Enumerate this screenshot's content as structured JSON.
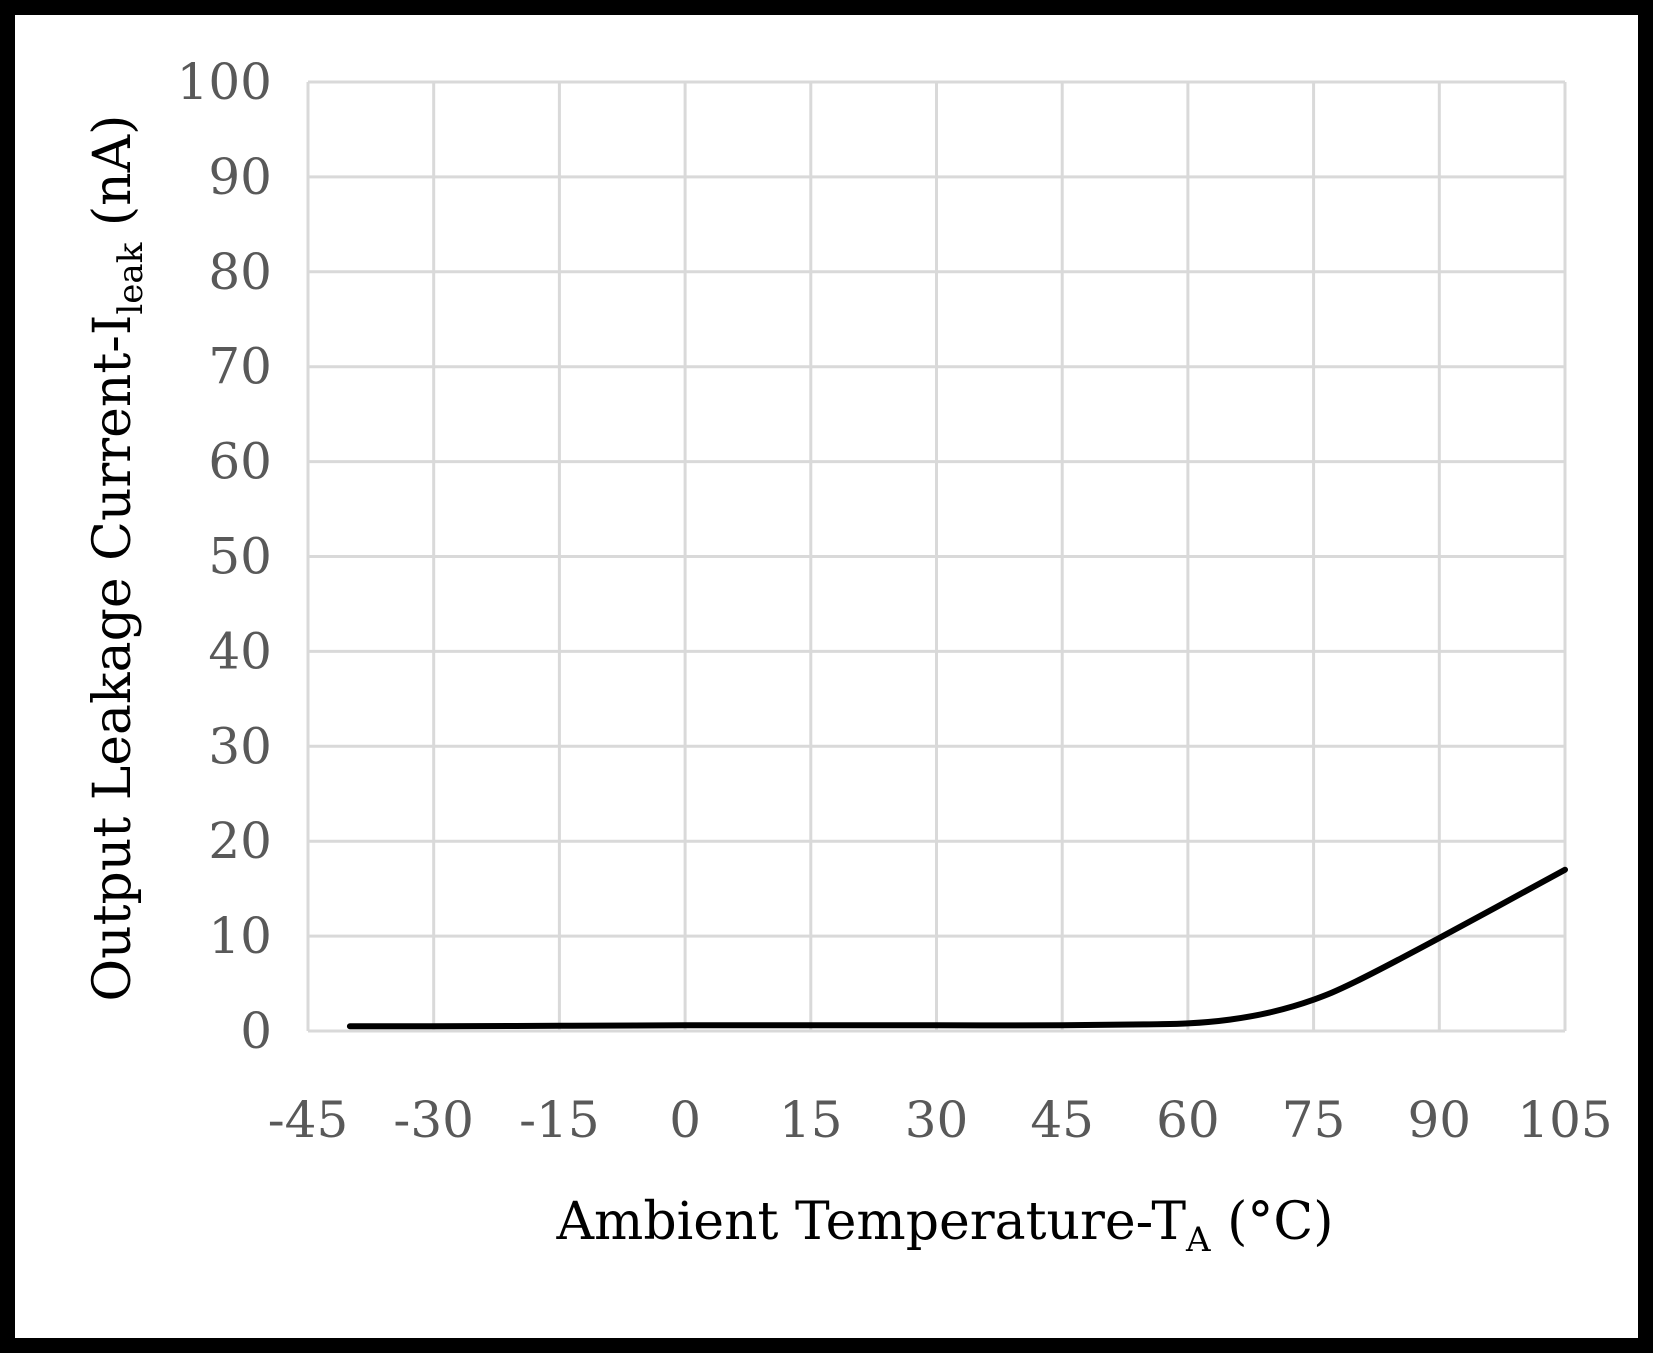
{
  "chart_data": {
    "type": "line",
    "title": "",
    "xlabel": {
      "main": "Ambient Temperature-T",
      "subscript": "A",
      "suffix": " (°C)"
    },
    "ylabel": {
      "main": "Output Leakage Current-I",
      "subscript": "leak",
      "suffix": " (nA)"
    },
    "xlim": [
      -45,
      105
    ],
    "ylim": [
      0,
      100
    ],
    "x_ticks": [
      -45,
      -30,
      -15,
      0,
      15,
      30,
      45,
      60,
      75,
      90,
      105
    ],
    "x_tick_labels": [
      "-45",
      "-30",
      "-15",
      "0",
      "15",
      "30",
      "45",
      "60",
      "75",
      "90",
      "105"
    ],
    "y_ticks": [
      0,
      10,
      20,
      30,
      40,
      50,
      60,
      70,
      80,
      90,
      100
    ],
    "y_tick_labels": [
      "0",
      "10",
      "20",
      "30",
      "40",
      "50",
      "60",
      "70",
      "80",
      "90",
      "100"
    ],
    "grid": true,
    "legend": "none",
    "series": [
      {
        "name": "Output Leakage Current",
        "color": "#000000",
        "x": [
          -40,
          -30,
          -15,
          0,
          15,
          30,
          45,
          55,
          60,
          65,
          70,
          75,
          80,
          90,
          105
        ],
        "y": [
          0.5,
          0.5,
          0.55,
          0.6,
          0.6,
          0.6,
          0.6,
          0.7,
          0.8,
          1.2,
          2.0,
          3.3,
          5.2,
          9.8,
          17.0
        ]
      }
    ]
  },
  "colors": {
    "frame": "#000000",
    "background": "#ffffff",
    "grid": "#d9d9d9",
    "tick_text": "#595959",
    "title_text": "#000000"
  }
}
